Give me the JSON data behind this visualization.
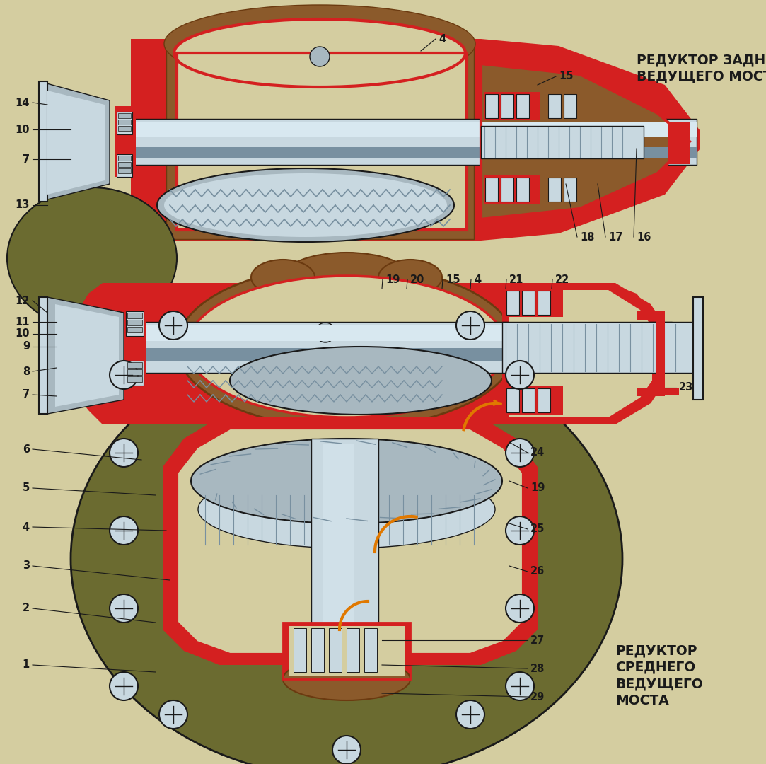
{
  "bg": "#d4cda0",
  "red": "#d42020",
  "brown": "#8b5a2b",
  "brown_dark": "#6b3a10",
  "olive": "#6b6b30",
  "silver": "#a8b8c0",
  "silver_light": "#c8d8e0",
  "silver_dark": "#7890a0",
  "dark": "#1a1a1a",
  "orange": "#e07800",
  "title1": "РЕДУКТОР ЗАДНЕГО\nВЕДУЩЕГО МОСТА",
  "title2": "РЕДУКТОР\nСРЕДНЕГО\nВЕДУЩЕГО\nМОСТА",
  "label_fs": 10.5,
  "title_fs": 13.5
}
